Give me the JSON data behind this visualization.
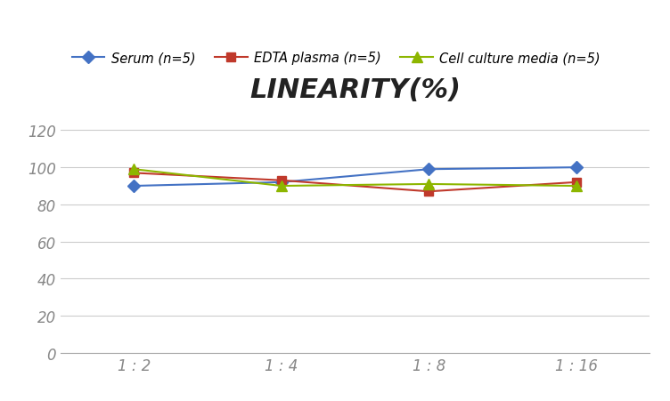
{
  "title": "LINEARITY(%)",
  "x_labels": [
    "1 : 2",
    "1 : 4",
    "1 : 8",
    "1 : 16"
  ],
  "x_positions": [
    0,
    1,
    2,
    3
  ],
  "series": [
    {
      "label": "Serum (n=5)",
      "values": [
        90,
        92,
        99,
        100
      ],
      "color": "#4472C4",
      "marker": "D",
      "markersize": 7,
      "linestyle": "-"
    },
    {
      "label": "EDTA plasma (n=5)",
      "values": [
        97,
        93,
        87,
        92
      ],
      "color": "#C0392B",
      "marker": "s",
      "markersize": 7,
      "linestyle": "-"
    },
    {
      "label": "Cell culture media (n=5)",
      "values": [
        99,
        90,
        91,
        90
      ],
      "color": "#8DB600",
      "marker": "^",
      "markersize": 8,
      "linestyle": "-"
    }
  ],
  "ylim": [
    0,
    130
  ],
  "yticks": [
    0,
    20,
    40,
    60,
    80,
    100,
    120
  ],
  "background_color": "#FFFFFF",
  "grid_color": "#CCCCCC",
  "title_fontsize": 22,
  "legend_fontsize": 10.5,
  "tick_fontsize": 12,
  "tick_color": "#888888"
}
